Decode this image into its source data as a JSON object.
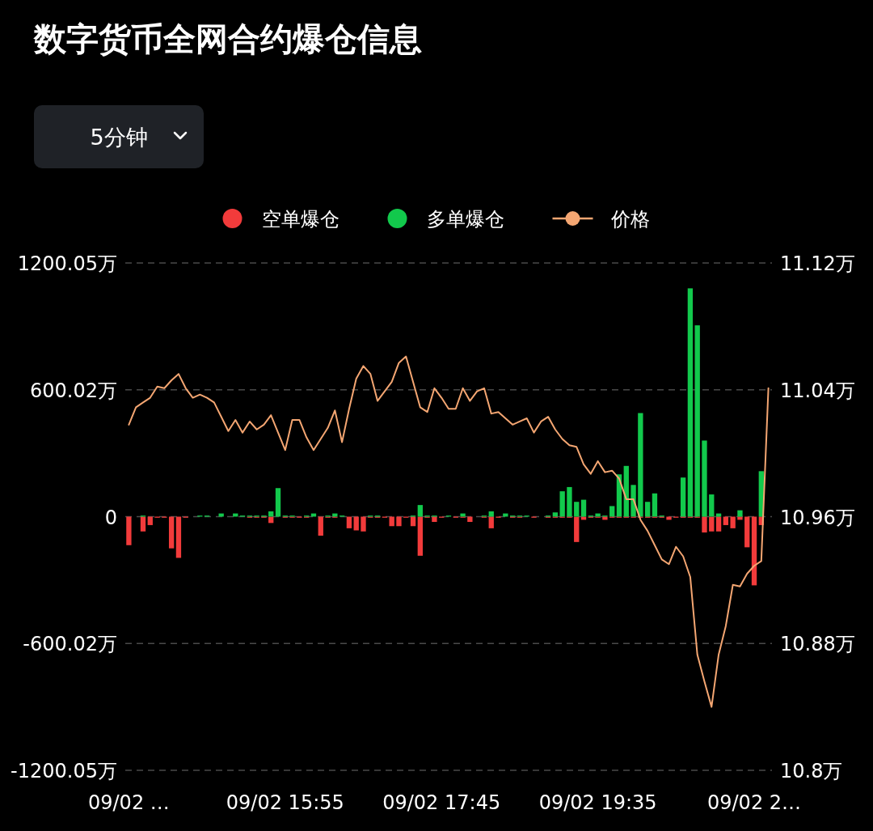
{
  "chart_data": {
    "type": "bar",
    "title": "数字货币全网合约爆仓信息",
    "annotations": [
      "5分钟"
    ],
    "categories": [
      "09/02 …",
      null,
      null,
      null,
      null,
      null,
      null,
      null,
      null,
      null,
      null,
      null,
      null,
      null,
      null,
      null,
      null,
      null,
      null,
      null,
      null,
      null,
      "09/02 15:55",
      null,
      null,
      null,
      null,
      null,
      null,
      null,
      null,
      null,
      null,
      null,
      null,
      null,
      null,
      null,
      null,
      null,
      null,
      null,
      null,
      null,
      "09/02 17:45",
      null,
      null,
      null,
      null,
      null,
      null,
      null,
      null,
      null,
      null,
      null,
      null,
      null,
      null,
      null,
      null,
      null,
      null,
      null,
      null,
      null,
      "09/02 19:35",
      null,
      null,
      null,
      null,
      null,
      null,
      null,
      null,
      null,
      null,
      null,
      null,
      null,
      null,
      null,
      null,
      null,
      null,
      null,
      null,
      null,
      "09/02 2…",
      null,
      null
    ],
    "series": [
      {
        "name": "空单爆仓",
        "color": "#f23b3b",
        "values": [
          -135,
          0,
          -70,
          -40,
          -5,
          -5,
          -150,
          -195,
          -5,
          0,
          0,
          0,
          0,
          0,
          0,
          0,
          0,
          -5,
          -5,
          -5,
          -30,
          0,
          -5,
          -5,
          -5,
          -5,
          0,
          -90,
          -5,
          -5,
          0,
          -55,
          -65,
          -70,
          -5,
          -5,
          -5,
          -45,
          -45,
          -5,
          -45,
          -185,
          -5,
          -25,
          -5,
          0,
          -5,
          -5,
          -25,
          0,
          -5,
          -55,
          -5,
          0,
          -5,
          -5,
          0,
          -5,
          0,
          -5,
          -5,
          -5,
          -5,
          -120,
          -15,
          -5,
          -5,
          -15,
          -5,
          -5,
          -5,
          -5,
          -5,
          -5,
          -5,
          -5,
          -15,
          -5,
          -5,
          -5,
          -5,
          -75,
          -70,
          -70,
          -40,
          -55,
          -15,
          -145,
          -325,
          -40,
          0
        ]
      },
      {
        "name": "多单爆仓",
        "color": "#12c94c",
        "values": [
          0,
          0,
          5,
          0,
          0,
          0,
          0,
          0,
          0,
          0,
          5,
          5,
          0,
          15,
          0,
          15,
          5,
          5,
          5,
          5,
          25,
          135,
          5,
          5,
          0,
          5,
          15,
          0,
          5,
          15,
          5,
          0,
          0,
          0,
          5,
          5,
          0,
          0,
          0,
          0,
          5,
          55,
          5,
          5,
          0,
          5,
          0,
          15,
          0,
          0,
          5,
          25,
          0,
          15,
          5,
          5,
          5,
          0,
          0,
          5,
          20,
          120,
          140,
          70,
          80,
          5,
          15,
          5,
          50,
          200,
          240,
          150,
          490,
          70,
          110,
          5,
          0,
          0,
          185,
          1080,
          905,
          360,
          105,
          15,
          0,
          0,
          30,
          0,
          0,
          215,
          0
        ]
      },
      {
        "name": "价格",
        "type": "line",
        "axis": "y2",
        "color": "#f4a672",
        "values": [
          11.018,
          11.029,
          11.032,
          11.035,
          11.042,
          11.041,
          11.046,
          11.05,
          11.041,
          11.035,
          11.037,
          11.035,
          11.032,
          11.023,
          11.014,
          11.021,
          11.013,
          11.02,
          11.015,
          11.018,
          11.024,
          11.013,
          11.002,
          11.021,
          11.021,
          11.01,
          11.002,
          11.009,
          11.016,
          11.027,
          11.007,
          11.028,
          11.047,
          11.055,
          11.05,
          11.033,
          11.039,
          11.045,
          11.057,
          11.061,
          11.045,
          11.029,
          11.026,
          11.041,
          11.035,
          11.028,
          11.028,
          11.041,
          11.033,
          11.039,
          11.041,
          11.025,
          11.026,
          11.022,
          11.018,
          11.02,
          11.022,
          11.013,
          11.02,
          11.023,
          11.015,
          11.009,
          11.005,
          11.004,
          10.993,
          10.987,
          10.995,
          10.988,
          10.989,
          10.984,
          10.971,
          10.971,
          10.958,
          10.951,
          10.942,
          10.933,
          10.93,
          10.941,
          10.935,
          10.922,
          10.873,
          10.856,
          10.84,
          10.873,
          10.891,
          10.917,
          10.916,
          10.924,
          10.929,
          10.932,
          11.041
        ]
      }
    ],
    "stacked": true,
    "ylim": [
      -1200.05,
      1200.05
    ],
    "yticks": [
      {
        "value": -1200.05,
        "label": "-1200.05万"
      },
      {
        "value": -600.02,
        "label": "-600.02万"
      },
      0,
      {
        "value": 600.02,
        "label": "600.02万"
      },
      {
        "value": 1200.05,
        "label": "1200.05万"
      }
    ],
    "y2lim": [
      10.8,
      11.12
    ],
    "y2ticks": [
      {
        "value": 10.8,
        "label": "10.8万"
      },
      {
        "value": 10.88,
        "label": "10.88万"
      },
      {
        "value": 10.96,
        "label": "10.96万"
      },
      {
        "value": 11.04,
        "label": "11.04万"
      },
      {
        "value": 11.12,
        "label": "11.12万"
      }
    ],
    "grid": "y",
    "legend": "top"
  }
}
